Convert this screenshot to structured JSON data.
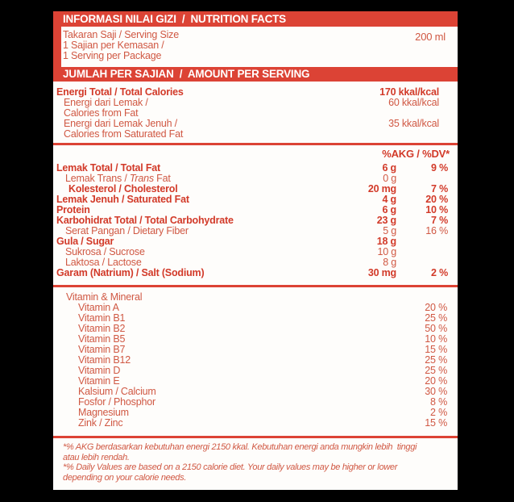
{
  "colors": {
    "accent_red": "#dc4335",
    "text_red_bold": "#d23a29",
    "text_red_regular": "#d05843",
    "label_background": "#fefdfb",
    "page_background": "#000000"
  },
  "header_bar": "INFORMASI NILAI GIZI  /  NUTRITION FACTS",
  "serving": {
    "line1": "Takaran Saji / Serving Size",
    "line2": "1 Sajian per Kemasan /",
    "line3": "1 Serving per Package",
    "size": "200 ml"
  },
  "amount_bar": "JUMLAH PER SAJIAN  /  AMOUNT PER SERVING",
  "energy": {
    "total_label": "Energi Total / Total Calories",
    "total_value": "170 kkal/kcal",
    "fat_label_1": "Energi dari Lemak /",
    "fat_label_2": "Calories from Fat",
    "fat_value": "60 kkal/kcal",
    "satfat_label_1": "Energi dari Lemak Jenuh /",
    "satfat_label_2": "Calories from Saturated Fat",
    "satfat_value": "35 kkal/kcal"
  },
  "dv_header": "%AKG / %DV*",
  "nutrients": [
    {
      "label": "Lemak Total / Total Fat",
      "amount": "6 g",
      "dv": "9 %"
    },
    {
      "label_prefix": "Lemak Trans / ",
      "label_italic": "Trans",
      "label_suffix": " Fat",
      "amount": "0 g",
      "dv": ""
    },
    {
      "label": "Kolesterol / Cholesterol",
      "amount": "20 mg",
      "dv": "7 %"
    },
    {
      "label": "Lemak Jenuh / Saturated Fat",
      "amount": "4 g",
      "dv": "20 %"
    },
    {
      "label": "Protein",
      "amount": "6 g",
      "dv": "10 %"
    },
    {
      "label": "Karbohidrat Total / Total Carbohydrate",
      "amount": "23 g",
      "dv": "7 %"
    },
    {
      "label": "Serat Pangan / Dietary Fiber",
      "amount": "5 g",
      "dv": "16 %"
    },
    {
      "label": "Gula / Sugar",
      "amount": "18 g",
      "dv": ""
    },
    {
      "label": "Sukrosa / Sucrose",
      "amount": "10 g",
      "dv": ""
    },
    {
      "label": "Laktosa / Lactose",
      "amount": "8 g",
      "dv": ""
    },
    {
      "label": "Garam (Natrium) / Salt (Sodium)",
      "amount": "30 mg",
      "dv": "2 %"
    }
  ],
  "vitamins": {
    "title": "Vitamin & Mineral",
    "items": [
      {
        "label": "Vitamin A",
        "dv": "20 %"
      },
      {
        "label": "Vitamin B1",
        "dv": "25 %"
      },
      {
        "label": "Vitamin B2",
        "dv": "50 %"
      },
      {
        "label": "Vitamin B5",
        "dv": "10 %"
      },
      {
        "label": "Vitamin B7",
        "dv": "15 %"
      },
      {
        "label": "Vitamin B12",
        "dv": "25 %"
      },
      {
        "label": "Vitamin D",
        "dv": "25 %"
      },
      {
        "label": "Vitamin E",
        "dv": "20 %"
      },
      {
        "label": "Kalsium / Calcium",
        "dv": "30 %"
      },
      {
        "label": "Fosfor / Phosphor",
        "dv": "8 %"
      },
      {
        "label": "Magnesium",
        "dv": "2 %"
      },
      {
        "label": "Zink / Zinc",
        "dv": "15 %"
      }
    ]
  },
  "footnotes": [
    "*% AKG berdasarkan kebutuhan energi 2150 kkal. Kebutuhan energi anda mungkin lebih  tinggi",
    "atau lebih rendah.",
    "*% Daily Values are based on a 2150 calorie diet. Your daily values may be higher or lower",
    "depending on your calorie needs."
  ]
}
